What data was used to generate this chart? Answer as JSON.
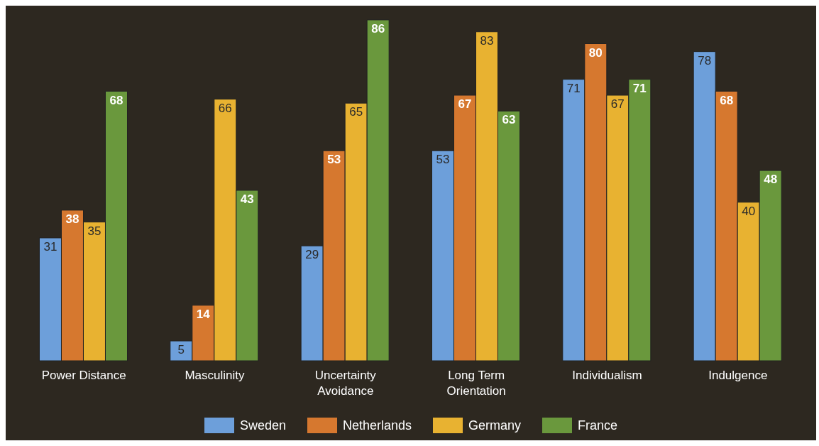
{
  "chart_data": {
    "type": "bar",
    "categories": [
      "Power Distance",
      "Masculinity",
      "Uncertainty Avoidance",
      "Long Term Orientation",
      "Individualism",
      "Indulgence"
    ],
    "series": [
      {
        "name": "Sweden",
        "color": "#6d9fda",
        "values": [
          31,
          5,
          29,
          53,
          71,
          78
        ]
      },
      {
        "name": "Netherlands",
        "color": "#d6782f",
        "values": [
          38,
          14,
          53,
          67,
          80,
          68
        ]
      },
      {
        "name": "Germany",
        "color": "#e8b231",
        "values": [
          35,
          66,
          65,
          83,
          67,
          40
        ]
      },
      {
        "name": "France",
        "color": "#6a983d",
        "values": [
          68,
          43,
          86,
          63,
          71,
          48
        ]
      }
    ],
    "data_labels": true,
    "legend": "bottom",
    "grid": false
  }
}
